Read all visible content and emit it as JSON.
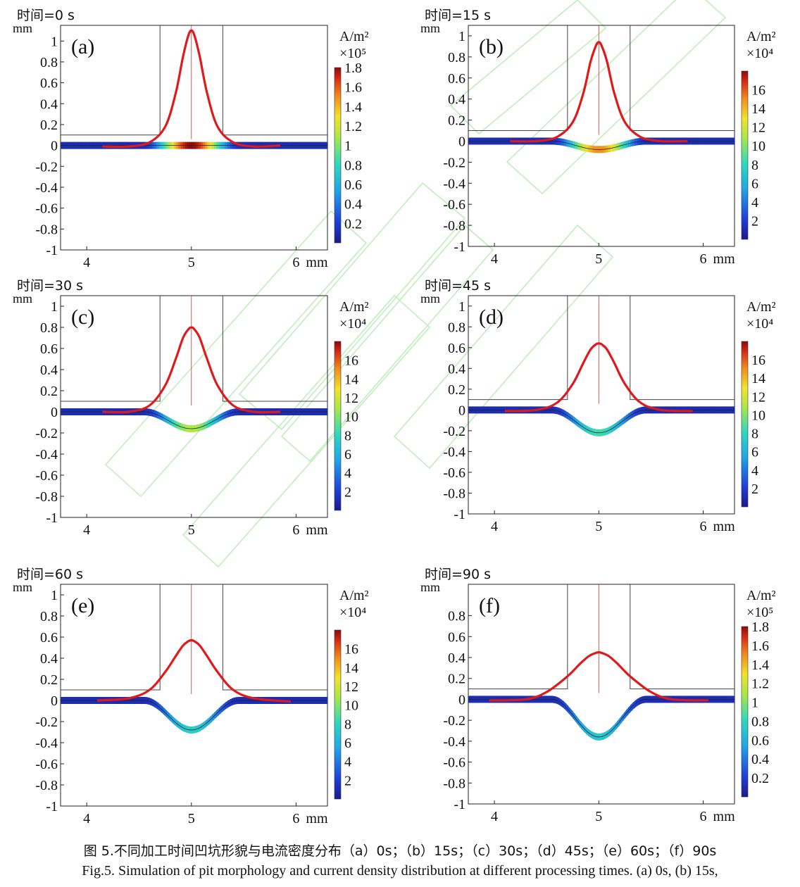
{
  "chart_data": [
    {
      "type": "line",
      "panel_label": "(a)",
      "time_label": "时间=0 s",
      "ylabel": "mm",
      "xlabel": "mm",
      "x_ticks": [
        "4",
        "5",
        "6"
      ],
      "y_ticks": [
        "1",
        "0.8",
        "0.6",
        "0.4",
        "0.2",
        "0",
        "-0.2",
        "-0.4",
        "-0.6",
        "-0.8",
        "-1"
      ],
      "xlim": [
        3.75,
        6.3
      ],
      "ylim": [
        -1,
        1.15
      ],
      "colorbar": {
        "unit": "A/m²",
        "scale": "×10⁵",
        "ticks": [
          "1.8",
          "1.6",
          "1.4",
          "1.2",
          "1",
          "0.8",
          "0.6",
          "0.4",
          "0.2"
        ],
        "range": [
          0,
          1.8
        ]
      },
      "pit_depth_mm": 0.0,
      "pit_current_density": 1.8,
      "series": [
        {
          "x": [
            4.15,
            4.4,
            4.6,
            4.75,
            4.85,
            4.92,
            4.97,
            5.0,
            5.03,
            5.08,
            5.15,
            5.25,
            5.4,
            5.6,
            5.85
          ],
          "y": [
            -0.01,
            -0.01,
            0.03,
            0.18,
            0.5,
            0.85,
            1.05,
            1.1,
            1.05,
            0.85,
            0.5,
            0.18,
            0.03,
            -0.01,
            0.0
          ]
        }
      ]
    },
    {
      "type": "line",
      "panel_label": "(b)",
      "time_label": "时间=15 s",
      "ylabel": "mm",
      "xlabel": "mm",
      "x_ticks": [
        "4",
        "5",
        "6"
      ],
      "y_ticks": [
        "1",
        "0.8",
        "0.6",
        "0.4",
        "0.2",
        "0",
        "-0.2",
        "-0.4",
        "-0.6",
        "-0.8",
        "-1"
      ],
      "xlim": [
        3.75,
        6.3
      ],
      "ylim": [
        -1,
        1.1
      ],
      "colorbar": {
        "unit": "A/m²",
        "scale": "×10⁴",
        "ticks": [
          "16",
          "14",
          "12",
          "10",
          "8",
          "6",
          "4",
          "2"
        ],
        "range": [
          0,
          18
        ]
      },
      "pit_depth_mm": 0.08,
      "pit_current_density": 15,
      "series": [
        {
          "x": [
            4.15,
            4.4,
            4.6,
            4.75,
            4.85,
            4.92,
            4.97,
            5.0,
            5.03,
            5.08,
            5.15,
            5.25,
            5.4,
            5.6,
            5.85
          ],
          "y": [
            0.0,
            0.0,
            0.04,
            0.18,
            0.45,
            0.75,
            0.9,
            0.94,
            0.9,
            0.75,
            0.45,
            0.18,
            0.04,
            0.0,
            0.0
          ]
        }
      ]
    },
    {
      "type": "line",
      "panel_label": "(c)",
      "time_label": "时间=30 s",
      "ylabel": "mm",
      "xlabel": "mm",
      "x_ticks": [
        "4",
        "5",
        "6"
      ],
      "y_ticks": [
        "1",
        "0.8",
        "0.6",
        "0.4",
        "0.2",
        "0",
        "-0.2",
        "-0.4",
        "-0.6",
        "-0.8",
        "-1"
      ],
      "xlim": [
        3.75,
        6.3
      ],
      "ylim": [
        -1,
        1.1
      ],
      "colorbar": {
        "unit": "A/m²",
        "scale": "×10⁴",
        "ticks": [
          "16",
          "14",
          "12",
          "10",
          "8",
          "6",
          "4",
          "2"
        ],
        "range": [
          0,
          18
        ]
      },
      "pit_depth_mm": 0.16,
      "pit_current_density": 11,
      "series": [
        {
          "x": [
            4.15,
            4.4,
            4.6,
            4.75,
            4.85,
            4.92,
            4.97,
            5.0,
            5.03,
            5.08,
            5.15,
            5.25,
            5.4,
            5.6,
            5.85
          ],
          "y": [
            0.0,
            0.0,
            0.06,
            0.25,
            0.5,
            0.7,
            0.78,
            0.8,
            0.78,
            0.7,
            0.5,
            0.25,
            0.06,
            0.0,
            0.0
          ]
        }
      ]
    },
    {
      "type": "line",
      "panel_label": "(d)",
      "time_label": "时间=45 s",
      "ylabel": "mm",
      "xlabel": "mm",
      "x_ticks": [
        "4",
        "5",
        "6"
      ],
      "y_ticks": [
        "1",
        "0.8",
        "0.6",
        "0.4",
        "0.2",
        "0",
        "-0.2",
        "-0.4",
        "-0.6",
        "-0.8",
        "-1"
      ],
      "xlim": [
        3.75,
        6.3
      ],
      "ylim": [
        -1,
        1.1
      ],
      "colorbar": {
        "unit": "A/m²",
        "scale": "×10⁴",
        "ticks": [
          "16",
          "14",
          "12",
          "10",
          "8",
          "6",
          "4",
          "2"
        ],
        "range": [
          0,
          18
        ]
      },
      "pit_depth_mm": 0.22,
      "pit_current_density": 8.5,
      "series": [
        {
          "x": [
            4.1,
            4.4,
            4.6,
            4.75,
            4.85,
            4.92,
            4.97,
            5.0,
            5.03,
            5.08,
            5.15,
            5.25,
            5.4,
            5.6,
            5.9
          ],
          "y": [
            -0.01,
            0.0,
            0.07,
            0.25,
            0.45,
            0.58,
            0.63,
            0.64,
            0.63,
            0.58,
            0.45,
            0.25,
            0.07,
            0.0,
            -0.01
          ]
        }
      ]
    },
    {
      "type": "line",
      "panel_label": "(e)",
      "time_label": "时间=60 s",
      "ylabel": "mm",
      "xlabel": "mm",
      "x_ticks": [
        "4",
        "5",
        "6"
      ],
      "y_ticks": [
        "1",
        "0.8",
        "0.6",
        "0.4",
        "0.2",
        "0",
        "-0.2",
        "-0.4",
        "-0.6",
        "-0.8",
        "-1"
      ],
      "xlim": [
        3.75,
        6.3
      ],
      "ylim": [
        -1,
        1.1
      ],
      "colorbar": {
        "unit": "A/m²",
        "scale": "×10⁴",
        "ticks": [
          "16",
          "14",
          "12",
          "10",
          "8",
          "6",
          "4",
          "2"
        ],
        "range": [
          0,
          18
        ]
      },
      "pit_depth_mm": 0.28,
      "pit_current_density": 7.5,
      "series": [
        {
          "x": [
            4.1,
            4.4,
            4.6,
            4.75,
            4.85,
            4.92,
            4.97,
            5.0,
            5.03,
            5.08,
            5.15,
            5.25,
            5.4,
            5.6,
            5.95
          ],
          "y": [
            0.0,
            0.02,
            0.1,
            0.27,
            0.42,
            0.52,
            0.56,
            0.57,
            0.56,
            0.52,
            0.42,
            0.27,
            0.1,
            0.02,
            -0.01
          ]
        }
      ]
    },
    {
      "type": "line",
      "panel_label": "(f)",
      "time_label": "时间=90 s",
      "ylabel": "mm",
      "xlabel": "mm",
      "x_ticks": [
        "4",
        "5",
        "6"
      ],
      "y_ticks": [
        "0.8",
        "0.6",
        "0.4",
        "0.2",
        "0",
        "-0.2",
        "-0.4",
        "-0.6",
        "-0.8",
        "-1"
      ],
      "xlim": [
        3.75,
        6.3
      ],
      "ylim": [
        -1,
        1.1
      ],
      "colorbar": {
        "unit": "A/m²",
        "scale": "×10⁵",
        "ticks": [
          "1.8",
          "1.6",
          "1.4",
          "1.2",
          "1",
          "0.8",
          "0.6",
          "0.4",
          "0.2"
        ],
        "range": [
          0,
          1.8
        ]
      },
      "pit_depth_mm": 0.36,
      "pit_current_density": 0.72,
      "series": [
        {
          "x": [
            3.95,
            4.3,
            4.5,
            4.7,
            4.82,
            4.9,
            4.96,
            5.0,
            5.04,
            5.1,
            5.18,
            5.3,
            5.5,
            5.7,
            6.05
          ],
          "y": [
            -0.01,
            0.0,
            0.07,
            0.22,
            0.34,
            0.41,
            0.44,
            0.45,
            0.44,
            0.41,
            0.34,
            0.22,
            0.07,
            0.0,
            -0.01
          ]
        }
      ]
    }
  ],
  "captions": {
    "zh": "图 5.不同加工时间凹坑形貌与电流密度分布（a）0s；（b）15s；（c）30s；（d）45s；（e）60s；（f）90s",
    "en": "Fig.5. Simulation of pit morphology and current density distribution at different processing times. (a) 0s, (b) 15s,"
  },
  "colors": {
    "curve": "#e0191b",
    "axes": "#222222",
    "electrode": "#444444",
    "watermark": "#9ee89a"
  }
}
